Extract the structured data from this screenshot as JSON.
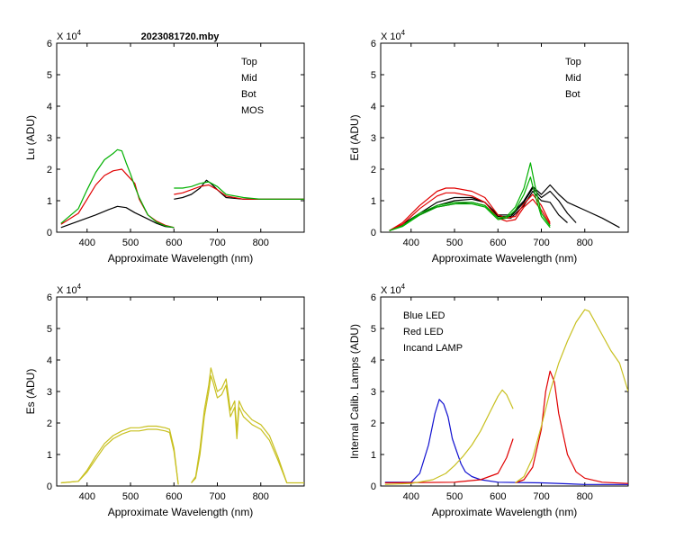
{
  "figure": {
    "title": "2023081720.mby",
    "exponent_label": "X 10",
    "exponent_power": "4"
  },
  "colors": {
    "top": "#000000",
    "mid": "#e00000",
    "bot": "#00b000",
    "mos": "#0000e0",
    "es": "#c8c020",
    "blue_led": "#1010d0",
    "red_led": "#e00000",
    "lamp": "#c8c020"
  },
  "chart_data": [
    {
      "id": "lu",
      "type": "line",
      "title": "2023081720.mby",
      "xlabel": "Approximate Wavelength (nm)",
      "ylabel": "Lu (ADU)",
      "xlim": [
        330,
        900
      ],
      "ylim": [
        0,
        6
      ],
      "xticks": [
        400,
        500,
        600,
        700,
        800
      ],
      "yticks": [
        0,
        1,
        2,
        3,
        4,
        5,
        6
      ],
      "y_scale_note": "values in units of 10^4 ADU",
      "legend": [
        "Top",
        "Mid",
        "Bot",
        "MOS"
      ],
      "legend_position": "top-right",
      "series": [
        {
          "name": "Top",
          "color": "#000000",
          "segments": [
            {
              "x": [
                340,
                380,
                420,
                450,
                470,
                490,
                510,
                540,
                560,
                580,
                600
              ],
              "y": [
                0.15,
                0.35,
                0.55,
                0.72,
                0.82,
                0.78,
                0.62,
                0.42,
                0.28,
                0.18,
                0.15
              ]
            },
            {
              "x": [
                600,
                620,
                640,
                660,
                675,
                685,
                700,
                720,
                760,
                800,
                840,
                900
              ],
              "y": [
                1.05,
                1.1,
                1.2,
                1.4,
                1.65,
                1.55,
                1.35,
                1.1,
                1.05,
                1.05,
                1.05,
                1.05
              ]
            }
          ]
        },
        {
          "name": "Mid",
          "color": "#e00000",
          "segments": [
            {
              "x": [
                340,
                380,
                400,
                420,
                440,
                460,
                480,
                490,
                510,
                520,
                540,
                560,
                580,
                600
              ],
              "y": [
                0.25,
                0.6,
                1.05,
                1.5,
                1.8,
                1.95,
                2.0,
                1.85,
                1.55,
                1.05,
                0.55,
                0.35,
                0.22,
                0.15
              ]
            },
            {
              "x": [
                600,
                620,
                640,
                660,
                680,
                700,
                720,
                760,
                800,
                840,
                900
              ],
              "y": [
                1.2,
                1.25,
                1.35,
                1.45,
                1.5,
                1.35,
                1.15,
                1.05,
                1.05,
                1.05,
                1.05
              ]
            }
          ]
        },
        {
          "name": "Bot",
          "color": "#00b000",
          "segments": [
            {
              "x": [
                340,
                380,
                400,
                420,
                440,
                460,
                470,
                480,
                490,
                500,
                510,
                520,
                540,
                560,
                580,
                600
              ],
              "y": [
                0.28,
                0.75,
                1.35,
                1.9,
                2.3,
                2.5,
                2.62,
                2.58,
                2.2,
                1.85,
                1.45,
                1.1,
                0.55,
                0.32,
                0.2,
                0.15
              ]
            },
            {
              "x": [
                600,
                620,
                640,
                660,
                680,
                700,
                720,
                760,
                800,
                840,
                900
              ],
              "y": [
                1.4,
                1.4,
                1.45,
                1.55,
                1.6,
                1.45,
                1.2,
                1.1,
                1.05,
                1.05,
                1.05
              ]
            }
          ]
        },
        {
          "name": "MOS",
          "color": "#0000e0",
          "segments": []
        }
      ]
    },
    {
      "id": "ed",
      "type": "line",
      "xlabel": "Approximate Wavelength (nm)",
      "ylabel": "Ed  (ADU)",
      "xlim": [
        330,
        900
      ],
      "ylim": [
        0,
        6
      ],
      "xticks": [
        400,
        500,
        600,
        700,
        800
      ],
      "yticks": [
        0,
        1,
        2,
        3,
        4,
        5,
        6
      ],
      "y_scale_note": "values in units of 10^4 ADU",
      "legend": [
        "Top",
        "Mid",
        "Bot"
      ],
      "legend_position": "top-right",
      "series": [
        {
          "name": "Top",
          "color": "#000000",
          "segments": [
            {
              "x": [
                350,
                380,
                420,
                460,
                500,
                540,
                570,
                600,
                630,
                660,
                680,
                700,
                720,
                740,
                760,
                800,
                840,
                880
              ],
              "y": [
                0.05,
                0.2,
                0.55,
                0.85,
                1.0,
                1.05,
                0.95,
                0.55,
                0.55,
                1.0,
                1.45,
                1.2,
                1.5,
                1.2,
                0.95,
                0.7,
                0.45,
                0.15
              ]
            },
            {
              "x": [
                350,
                380,
                420,
                460,
                500,
                540,
                570,
                600,
                630,
                660,
                680,
                700,
                720,
                740,
                760,
                780
              ],
              "y": [
                0.05,
                0.25,
                0.6,
                0.95,
                1.1,
                1.1,
                0.95,
                0.5,
                0.5,
                0.95,
                1.4,
                1.1,
                1.3,
                1.0,
                0.6,
                0.3
              ]
            },
            {
              "x": [
                350,
                380,
                420,
                460,
                500,
                540,
                570,
                600,
                630,
                660,
                680,
                700,
                720,
                740,
                760
              ],
              "y": [
                0.05,
                0.2,
                0.55,
                0.8,
                0.9,
                0.95,
                0.85,
                0.45,
                0.45,
                0.85,
                1.3,
                1.0,
                0.95,
                0.55,
                0.3
              ]
            }
          ]
        },
        {
          "name": "Mid",
          "color": "#e00000",
          "segments": [
            {
              "x": [
                350,
                380,
                420,
                460,
                480,
                500,
                540,
                570,
                600,
                620,
                640,
                660,
                680,
                700,
                720
              ],
              "y": [
                0.05,
                0.3,
                0.85,
                1.3,
                1.4,
                1.4,
                1.3,
                1.1,
                0.55,
                0.45,
                0.5,
                0.9,
                1.2,
                0.85,
                0.3
              ]
            },
            {
              "x": [
                350,
                380,
                420,
                460,
                480,
                500,
                540,
                570,
                600,
                620,
                640,
                660,
                680,
                700,
                720
              ],
              "y": [
                0.05,
                0.25,
                0.75,
                1.15,
                1.25,
                1.25,
                1.15,
                0.95,
                0.45,
                0.35,
                0.4,
                0.8,
                1.05,
                0.7,
                0.25
              ]
            }
          ]
        },
        {
          "name": "Bot",
          "color": "#00b000",
          "segments": [
            {
              "x": [
                350,
                380,
                420,
                460,
                500,
                540,
                570,
                600,
                620,
                640,
                660,
                675,
                685,
                700,
                720
              ],
              "y": [
                0.05,
                0.2,
                0.6,
                0.85,
                0.95,
                0.95,
                0.85,
                0.45,
                0.5,
                0.8,
                1.4,
                2.2,
                1.5,
                0.6,
                0.2
              ]
            },
            {
              "x": [
                350,
                380,
                420,
                460,
                500,
                540,
                570,
                600,
                620,
                640,
                660,
                675,
                685,
                700,
                720
              ],
              "y": [
                0.05,
                0.18,
                0.55,
                0.8,
                0.9,
                0.9,
                0.8,
                0.4,
                0.45,
                0.7,
                1.2,
                1.75,
                1.2,
                0.5,
                0.15
              ]
            }
          ]
        }
      ]
    },
    {
      "id": "es",
      "type": "line",
      "xlabel": "Approximate Wavelength (nm)",
      "ylabel": "Es  (ADU)",
      "xlim": [
        330,
        900
      ],
      "ylim": [
        0,
        6
      ],
      "xticks": [
        400,
        500,
        600,
        700,
        800
      ],
      "yticks": [
        0,
        1,
        2,
        3,
        4,
        5,
        6
      ],
      "y_scale_note": "values in units of 10^4 ADU",
      "series": [
        {
          "name": "Es",
          "color": "#c8c020",
          "segments": [
            {
              "x": [
                340,
                380,
                400,
                420,
                440,
                460,
                480,
                500,
                520,
                540,
                560,
                580,
                590,
                600,
                610
              ],
              "y": [
                0.1,
                0.15,
                0.5,
                0.95,
                1.35,
                1.6,
                1.75,
                1.85,
                1.85,
                1.9,
                1.9,
                1.85,
                1.8,
                1.2,
                0.05
              ]
            },
            {
              "x": [
                340,
                380,
                400,
                420,
                440,
                460,
                480,
                500,
                520,
                540,
                560,
                580,
                590,
                600,
                610
              ],
              "y": [
                0.1,
                0.15,
                0.45,
                0.85,
                1.25,
                1.5,
                1.65,
                1.75,
                1.75,
                1.8,
                1.8,
                1.75,
                1.7,
                1.1,
                0.05
              ]
            },
            {
              "x": [
                640,
                650,
                660,
                670,
                680,
                685,
                690,
                700,
                710,
                720,
                730,
                740,
                745,
                750,
                760,
                780,
                800,
                820,
                840,
                860,
                900
              ],
              "y": [
                0.1,
                0.3,
                1.2,
                2.4,
                3.2,
                3.75,
                3.5,
                3.0,
                3.1,
                3.4,
                2.4,
                2.7,
                1.7,
                2.7,
                2.4,
                2.1,
                1.95,
                1.6,
                0.9,
                0.1,
                0.1
              ]
            },
            {
              "x": [
                640,
                650,
                660,
                670,
                680,
                685,
                690,
                700,
                710,
                720,
                730,
                740,
                745,
                750,
                760,
                780,
                800,
                820,
                840,
                860
              ],
              "y": [
                0.1,
                0.25,
                1.0,
                2.2,
                3.0,
                3.5,
                3.3,
                2.8,
                2.9,
                3.2,
                2.2,
                2.5,
                1.5,
                2.5,
                2.2,
                1.95,
                1.8,
                1.45,
                0.8,
                0.1
              ]
            }
          ]
        }
      ]
    },
    {
      "id": "lamps",
      "type": "line",
      "xlabel": "Approximate Wavelength (nm)",
      "ylabel": "Internal Calib. Lamps  (ADU)",
      "xlim": [
        330,
        900
      ],
      "ylim": [
        0,
        6
      ],
      "xticks": [
        400,
        500,
        600,
        700,
        800
      ],
      "yticks": [
        0,
        1,
        2,
        3,
        4,
        5,
        6
      ],
      "y_scale_note": "values in units of 10^4 ADU",
      "legend": [
        "Blue LED",
        "Red LED",
        "Incand LAMP"
      ],
      "legend_position": "top-left",
      "series": [
        {
          "name": "Blue LED",
          "color": "#1010d0",
          "segments": [
            {
              "x": [
                340,
                400,
                420,
                440,
                455,
                465,
                475,
                485,
                495,
                505,
                515,
                525,
                540,
                560,
                600,
                700,
                800,
                900
              ],
              "y": [
                0.12,
                0.12,
                0.4,
                1.3,
                2.3,
                2.75,
                2.6,
                2.2,
                1.5,
                1.1,
                0.7,
                0.45,
                0.3,
                0.2,
                0.12,
                0.1,
                0.05,
                0.05
              ]
            }
          ]
        },
        {
          "name": "Red LED",
          "color": "#e00000",
          "segments": [
            {
              "x": [
                340,
                500,
                560,
                600,
                620,
                635
              ],
              "y": [
                0.1,
                0.12,
                0.2,
                0.4,
                0.9,
                1.5
              ]
            },
            {
              "x": [
                640,
                660,
                680,
                700,
                710,
                720,
                730,
                740,
                760,
                780,
                800,
                840,
                900
              ],
              "y": [
                0.1,
                0.2,
                0.6,
                1.8,
                3.0,
                3.65,
                3.3,
                2.3,
                1.0,
                0.45,
                0.25,
                0.12,
                0.08
              ]
            }
          ]
        },
        {
          "name": "Incand LAMP",
          "color": "#c8c020",
          "segments": [
            {
              "x": [
                340,
                400,
                450,
                480,
                500,
                520,
                540,
                560,
                580,
                600,
                610,
                620,
                635
              ],
              "y": [
                0.05,
                0.08,
                0.2,
                0.4,
                0.65,
                0.95,
                1.3,
                1.75,
                2.3,
                2.85,
                3.05,
                2.9,
                2.45
              ]
            },
            {
              "x": [
                640,
                660,
                680,
                700,
                720,
                740,
                760,
                780,
                800,
                810,
                820,
                840,
                860,
                880,
                900
              ],
              "y": [
                0.1,
                0.3,
                0.9,
                1.9,
                3.0,
                3.9,
                4.6,
                5.2,
                5.6,
                5.55,
                5.3,
                4.8,
                4.3,
                3.9,
                3.0
              ]
            }
          ]
        }
      ]
    }
  ]
}
